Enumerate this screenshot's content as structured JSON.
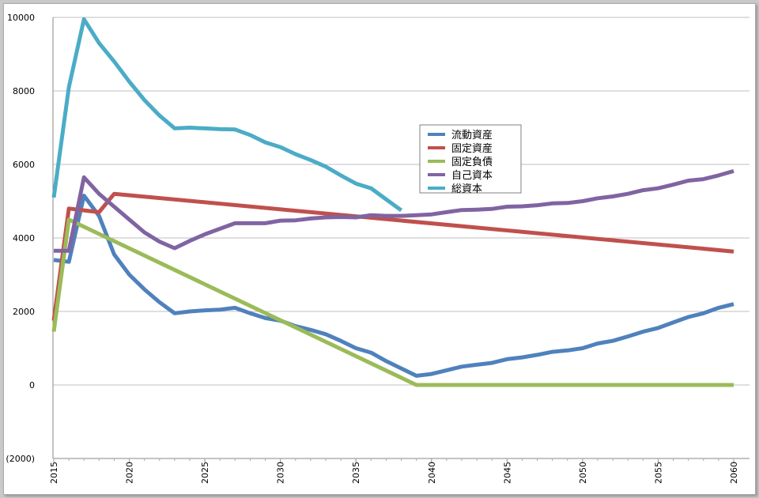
{
  "chart_data": {
    "type": "line",
    "title": "",
    "xlabel": "",
    "ylabel": "",
    "xlim": [
      2015,
      2060
    ],
    "ylim": [
      -2000,
      10000
    ],
    "y_ticks": [
      -2000,
      0,
      2000,
      4000,
      6000,
      8000,
      10000
    ],
    "y_tick_labels": [
      "(2000)",
      "0",
      "2000",
      "4000",
      "6000",
      "8000",
      "10000"
    ],
    "x_ticks": [
      2015,
      2020,
      2025,
      2030,
      2035,
      2040,
      2045,
      2050,
      2055,
      2060
    ],
    "x_tick_labels": [
      "2015",
      "2020",
      "2025",
      "2030",
      "2035",
      "2040",
      "2045",
      "2050",
      "2055",
      "2060"
    ],
    "grid": "horizontal",
    "legend_position": "center-right",
    "series": [
      {
        "name": "流動資産",
        "color": "#4f81bd",
        "x": [
          2015,
          2016,
          2017,
          2018,
          2019,
          2020,
          2021,
          2022,
          2023,
          2024,
          2025,
          2026,
          2027,
          2028,
          2029,
          2030,
          2031,
          2032,
          2033,
          2034,
          2035,
          2036,
          2037,
          2038,
          2039,
          2040,
          2041,
          2042,
          2043,
          2044,
          2045,
          2046,
          2047,
          2048,
          2049,
          2050,
          2051,
          2052,
          2053,
          2054,
          2055,
          2056,
          2057,
          2058,
          2059,
          2060
        ],
        "values": [
          3400,
          3350,
          5150,
          4600,
          3550,
          3000,
          2600,
          2250,
          1950,
          2000,
          2030,
          2050,
          2100,
          1950,
          1820,
          1750,
          1600,
          1500,
          1380,
          1200,
          1000,
          880,
          650,
          450,
          250,
          300,
          400,
          500,
          550,
          600,
          700,
          750,
          820,
          900,
          940,
          1000,
          1130,
          1200,
          1320,
          1450,
          1550,
          1700,
          1850,
          1950,
          2100,
          2200
        ]
      },
      {
        "name": "固定資産",
        "color": "#c0504d",
        "x": [
          2015,
          2016,
          2017,
          2018,
          2019,
          2060
        ],
        "values": [
          1750,
          4800,
          4750,
          4700,
          5200,
          3630
        ]
      },
      {
        "name": "固定負債",
        "color": "#9bbb59",
        "x": [
          2015,
          2016,
          2039,
          2060
        ],
        "values": [
          1450,
          4500,
          0,
          0
        ]
      },
      {
        "name": "自己資本",
        "color": "#8064a2",
        "x": [
          2015,
          2016,
          2017,
          2018,
          2019,
          2020,
          2021,
          2022,
          2023,
          2024,
          2025,
          2026,
          2027,
          2028,
          2029,
          2030,
          2031,
          2032,
          2033,
          2034,
          2035,
          2036,
          2037,
          2038,
          2039,
          2040,
          2041,
          2042,
          2043,
          2044,
          2045,
          2046,
          2047,
          2048,
          2049,
          2050,
          2051,
          2052,
          2053,
          2054,
          2055,
          2056,
          2057,
          2058,
          2059,
          2060
        ],
        "values": [
          3650,
          3650,
          5650,
          5200,
          4850,
          4500,
          4150,
          3900,
          3720,
          3920,
          4100,
          4250,
          4400,
          4400,
          4400,
          4470,
          4480,
          4530,
          4560,
          4570,
          4560,
          4620,
          4600,
          4600,
          4620,
          4640,
          4700,
          4760,
          4770,
          4790,
          4850,
          4860,
          4890,
          4940,
          4950,
          5000,
          5080,
          5130,
          5200,
          5300,
          5350,
          5450,
          5560,
          5600,
          5700,
          5820
        ]
      },
      {
        "name": "総資本",
        "color": "#4bacc6",
        "x": [
          2015,
          2016,
          2017,
          2018,
          2019,
          2020,
          2021,
          2022,
          2023,
          2024,
          2025,
          2026,
          2027,
          2028,
          2029,
          2030,
          2031,
          2032,
          2033,
          2034,
          2035,
          2036,
          2037,
          2038
        ],
        "values": [
          5100,
          8100,
          9950,
          9300,
          8800,
          8250,
          7750,
          7330,
          6980,
          7000,
          6980,
          6960,
          6950,
          6800,
          6600,
          6470,
          6280,
          6120,
          5940,
          5700,
          5480,
          5350,
          5050,
          4750
        ]
      }
    ]
  }
}
